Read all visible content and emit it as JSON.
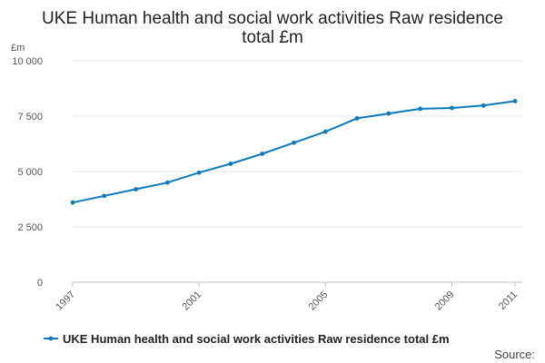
{
  "chart_data": {
    "type": "line",
    "title": "UKE Human health and social work activities Raw residence total £m",
    "y_unit": "£m",
    "xlabel": "",
    "ylabel": "",
    "ylim": [
      0,
      10000
    ],
    "y_ticks": [
      0,
      2500,
      5000,
      7500,
      10000
    ],
    "y_tick_labels": [
      "0",
      "2 500",
      "5 000",
      "7 500",
      "10 000"
    ],
    "x_ticks": [
      1997,
      2001,
      2005,
      2009,
      2011
    ],
    "x_tick_labels": [
      "1997",
      "2001",
      "2005",
      "2009",
      "2011"
    ],
    "xlim": [
      1997,
      2011
    ],
    "grid": true,
    "legend_position": "bottom",
    "source_label": "Source:",
    "series": [
      {
        "name": "UKE Human health and social work activities Raw residence total £m",
        "color": "#0b7bbd",
        "points": [
          {
            "x": 1997,
            "y": 3600
          },
          {
            "x": 1998,
            "y": 3900
          },
          {
            "x": 1999,
            "y": 4200
          },
          {
            "x": 2000,
            "y": 4500
          },
          {
            "x": 2001,
            "y": 4950
          },
          {
            "x": 2002,
            "y": 5350
          },
          {
            "x": 2003,
            "y": 5800
          },
          {
            "x": 2004,
            "y": 6300
          },
          {
            "x": 2005,
            "y": 6800
          },
          {
            "x": 2006,
            "y": 7400
          },
          {
            "x": 2007,
            "y": 7620
          },
          {
            "x": 2008,
            "y": 7830
          },
          {
            "x": 2009,
            "y": 7870
          },
          {
            "x": 2010,
            "y": 7980
          },
          {
            "x": 2011,
            "y": 8180
          }
        ]
      }
    ]
  }
}
